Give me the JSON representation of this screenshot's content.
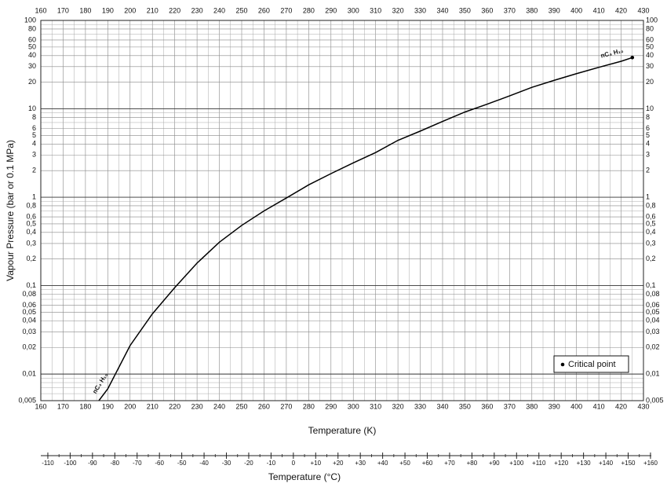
{
  "chart_data": {
    "type": "line",
    "log_y": true,
    "grid": true,
    "xlabel": "Temperature (K)",
    "ylabel": "Vapour Pressure (bar or 0.1 MPa)",
    "x2label": "Temperature (°C)",
    "xlim": [
      160,
      430
    ],
    "ylim": [
      0.005,
      100
    ],
    "xticks": [
      160,
      170,
      180,
      190,
      200,
      210,
      220,
      230,
      240,
      250,
      260,
      270,
      280,
      290,
      300,
      310,
      320,
      330,
      340,
      350,
      360,
      370,
      380,
      390,
      400,
      410,
      420,
      430
    ],
    "yticks": [
      100,
      80,
      60,
      50,
      40,
      30,
      20,
      10,
      8,
      6,
      5,
      4,
      3,
      2,
      1,
      {
        "value": 0.8,
        "label": "0,8"
      },
      {
        "value": 0.6,
        "label": "0,6"
      },
      {
        "value": 0.5,
        "label": "0,5"
      },
      {
        "value": 0.4,
        "label": "0,4"
      },
      {
        "value": 0.3,
        "label": "0,3"
      },
      {
        "value": 0.2,
        "label": "0,2"
      },
      {
        "value": 0.1,
        "label": "0,1"
      },
      {
        "value": 0.08,
        "label": "0,08"
      },
      {
        "value": 0.06,
        "label": "0,06"
      },
      {
        "value": 0.05,
        "label": "0,05"
      },
      {
        "value": 0.04,
        "label": "0,04"
      },
      {
        "value": 0.03,
        "label": "0,03"
      },
      {
        "value": 0.02,
        "label": "0,02"
      },
      {
        "value": 0.01,
        "label": "0,01"
      },
      {
        "value": 0.005,
        "label": "0,005"
      }
    ],
    "y_minor_gridlines": [
      90,
      70,
      9,
      7,
      0.9,
      0.7,
      0.09,
      0.07,
      0.009,
      0.008,
      0.007,
      0.006
    ],
    "x2lim": [
      -113.15,
      156.85
    ],
    "x2ticks": [
      -110,
      -100,
      -90,
      -80,
      -70,
      -60,
      -50,
      -40,
      -30,
      -20,
      -10,
      0,
      {
        "value": 10,
        "label": "+10"
      },
      {
        "value": 20,
        "label": "+20"
      },
      {
        "value": 30,
        "label": "+30"
      },
      {
        "value": 40,
        "label": "+40"
      },
      {
        "value": 50,
        "label": "+50"
      },
      {
        "value": 60,
        "label": "+60"
      },
      {
        "value": 70,
        "label": "+70"
      },
      {
        "value": 80,
        "label": "+80"
      },
      {
        "value": 90,
        "label": "+90"
      },
      {
        "value": 100,
        "label": "+100"
      },
      {
        "value": 110,
        "label": "+110"
      },
      {
        "value": 120,
        "label": "+120"
      },
      {
        "value": 130,
        "label": "+130"
      },
      {
        "value": 140,
        "label": "+140"
      },
      {
        "value": 150,
        "label": "+150"
      },
      {
        "value": 160,
        "label": "+160"
      }
    ],
    "series": [
      {
        "name": "nC₄ H₁₀",
        "color": "#000000",
        "x": [
          186,
          190,
          200,
          210,
          220,
          230,
          240,
          250,
          260,
          270,
          280,
          290,
          300,
          310,
          320,
          330,
          340,
          350,
          360,
          370,
          380,
          390,
          400,
          410,
          420,
          425
        ],
        "values": [
          0.005,
          0.0068,
          0.021,
          0.048,
          0.095,
          0.18,
          0.31,
          0.48,
          0.7,
          0.98,
          1.38,
          1.85,
          2.45,
          3.2,
          4.4,
          5.6,
          7.2,
          9.2,
          11.3,
          14,
          17.5,
          21,
          25,
          29.5,
          34.5,
          38
        ]
      }
    ],
    "annotations": [
      "nC₄ H₁₀",
      "nC₄ H₁₀"
    ],
    "critical_point": {
      "x": 425,
      "y": 38,
      "label": "Critical point"
    }
  }
}
